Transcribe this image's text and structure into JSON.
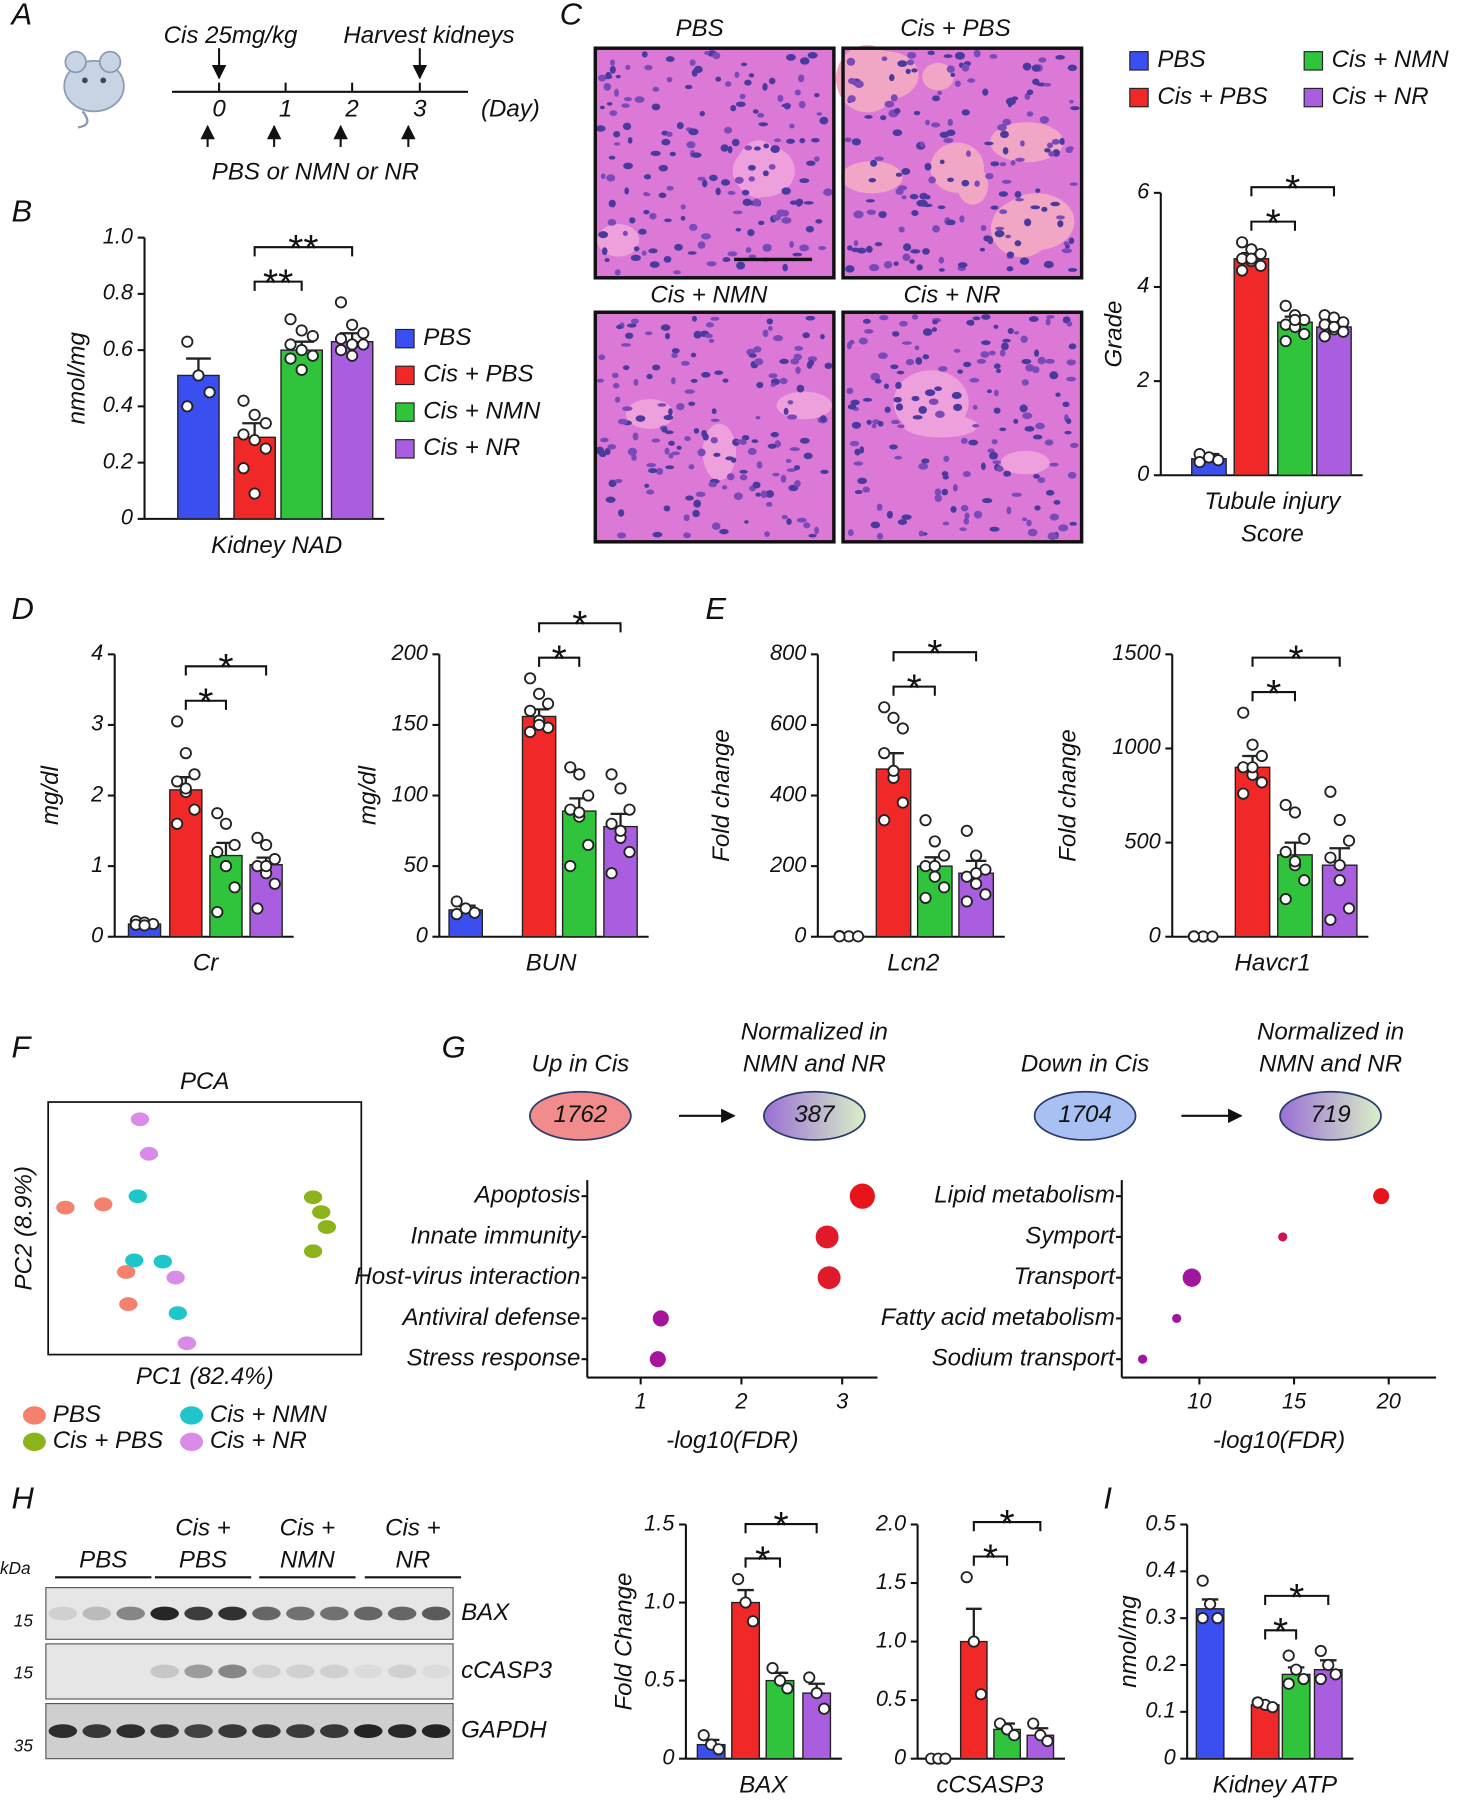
{
  "panels": [
    "A",
    "B",
    "C",
    "D",
    "E",
    "F",
    "G",
    "H",
    "I"
  ],
  "timeline": {
    "dose": "Cis 25mg/kg",
    "harvest": "Harvest kidneys",
    "days": [
      0,
      1,
      2,
      3
    ],
    "unit": "(Day)",
    "treatment": "PBS or NMN or NR"
  },
  "groups": [
    {
      "name": "PBS",
      "color": "#3b4ef0"
    },
    {
      "name": "Cis + PBS",
      "color": "#f02828"
    },
    {
      "name": "Cis + NMN",
      "color": "#2fc43c"
    },
    {
      "name": "Cis + NR",
      "color": "#a95ee0"
    }
  ],
  "histology": [
    "PBS",
    "Cis + PBS",
    "Cis + NMN",
    "Cis + NR"
  ],
  "venn": [
    {
      "label": [
        "Up in Cis"
      ],
      "count": 1762
    },
    {
      "label": [
        "Normalized in",
        "NMN and NR"
      ],
      "count": 387
    },
    {
      "label": [
        "Down in Cis"
      ],
      "count": 1704
    },
    {
      "label": [
        "Normalized in",
        "NMN and NR"
      ],
      "count": 719
    }
  ],
  "blot": {
    "kda": "kDa",
    "groups": [
      [
        "PBS"
      ],
      [
        "Cis +",
        "PBS"
      ],
      [
        "Cis +",
        "NMN"
      ],
      [
        "Cis +",
        "NR"
      ]
    ],
    "markers": [
      15,
      15,
      35
    ],
    "bands": [
      "BAX",
      "cCASP3",
      "GAPDH"
    ]
  },
  "chart_data": [
    {
      "type": "bar",
      "ylabel": "nmol/mg",
      "xlabel": [
        "Kidney NAD"
      ],
      "values": [
        0.51,
        0.29,
        0.6,
        0.63
      ],
      "errors": [
        0.06,
        0.05,
        0.03,
        0.03
      ],
      "points": [
        [
          0.63,
          0.51,
          0.45,
          0.4
        ],
        [
          0.42,
          0.37,
          0.34,
          0.3,
          0.28,
          0.25,
          0.18,
          0.09
        ],
        [
          0.71,
          0.67,
          0.65,
          0.62,
          0.6,
          0.58,
          0.57,
          0.53
        ],
        [
          0.77,
          0.69,
          0.66,
          0.64,
          0.62,
          0.62,
          0.6,
          0.58
        ]
      ],
      "ylim": [
        0,
        1
      ],
      "yticks": [
        0,
        0.2,
        0.4,
        0.6,
        0.8,
        {
          "value": 1,
          "label": "1.0"
        }
      ],
      "annotations": [
        "**",
        "**"
      ],
      "legend": "right"
    },
    {
      "type": "bar",
      "ylabel": "Grade",
      "xlabel": [
        "Tubule injury",
        "Score"
      ],
      "values": [
        0.35,
        4.6,
        3.25,
        3.15
      ],
      "errors": [
        0.1,
        0.12,
        0.12,
        0.08
      ],
      "points": [
        [
          0.45,
          0.38,
          0.32,
          0.28
        ],
        [
          4.95,
          4.8,
          4.7,
          4.6,
          4.55,
          4.45,
          4.35,
          4.6
        ],
        [
          3.6,
          3.4,
          3.3,
          3.2,
          3.15,
          3.0,
          2.85,
          3.3
        ],
        [
          3.4,
          3.35,
          3.25,
          3.2,
          3.1,
          3.05,
          2.95,
          3.15
        ]
      ],
      "ylim": [
        0,
        6
      ],
      "yticks": [
        0,
        2,
        4,
        6
      ],
      "annotations": [
        "*",
        "*"
      ],
      "legend": "top"
    },
    {
      "type": "bar",
      "ylabel": "mg/dl",
      "xlabel": [
        "Cr"
      ],
      "values": [
        0.18,
        2.08,
        1.15,
        1.02
      ],
      "errors": [
        0.03,
        0.18,
        0.18,
        0.1
      ],
      "points": [
        [
          0.22,
          0.2,
          0.18,
          0.17,
          0.16
        ],
        [
          3.05,
          2.6,
          2.3,
          2.2,
          2.05,
          1.8,
          1.6,
          2.1
        ],
        [
          1.75,
          1.6,
          1.3,
          1.2,
          1.0,
          0.7,
          0.35,
          1.0
        ],
        [
          1.4,
          1.3,
          1.1,
          1.0,
          0.9,
          0.75,
          0.4,
          1.0
        ]
      ],
      "ylim": [
        0,
        4
      ],
      "yticks": [
        0,
        1,
        2,
        3,
        4
      ],
      "annotations": [
        "*",
        "*"
      ]
    },
    {
      "type": "bar",
      "ylabel": "mg/dl",
      "xlabel": [
        "BUN"
      ],
      "values": [
        19,
        156,
        89,
        78
      ],
      "errors": [
        3,
        5,
        9,
        9
      ],
      "points": [
        [
          25,
          20,
          17,
          16
        ],
        [
          183,
          172,
          165,
          160,
          153,
          148,
          145,
          150
        ],
        [
          120,
          115,
          100,
          90,
          85,
          65,
          50,
          88
        ],
        [
          115,
          105,
          90,
          80,
          70,
          60,
          45,
          75
        ]
      ],
      "ylim": [
        0,
        200
      ],
      "yticks": [
        0,
        50,
        100,
        150,
        200
      ],
      "annotations": [
        "*",
        "*"
      ]
    },
    {
      "type": "bar",
      "ylabel": "Fold change",
      "xlabel": [
        "Lcn2"
      ],
      "values": [
        1,
        475,
        200,
        180
      ],
      "errors": [
        0.5,
        45,
        25,
        35
      ],
      "points": [
        [
          2,
          1,
          1,
          1
        ],
        [
          650,
          620,
          590,
          520,
          450,
          380,
          330,
          470
        ],
        [
          330,
          270,
          230,
          200,
          170,
          140,
          110,
          200
        ],
        [
          300,
          230,
          190,
          170,
          150,
          120,
          100,
          180
        ]
      ],
      "ylim": [
        0,
        800
      ],
      "yticks": [
        0,
        200,
        400,
        600,
        800
      ],
      "annotations": [
        "*",
        "*"
      ]
    },
    {
      "type": "bar",
      "ylabel": "Fold change",
      "xlabel": [
        "Havcr1"
      ],
      "values": [
        1,
        900,
        435,
        380
      ],
      "errors": [
        0.5,
        60,
        65,
        90
      ],
      "points": [
        [
          2,
          1,
          1,
          1
        ],
        [
          1190,
          1020,
          960,
          900,
          860,
          820,
          760,
          900
        ],
        [
          700,
          660,
          520,
          450,
          380,
          300,
          200,
          400
        ],
        [
          770,
          620,
          510,
          420,
          300,
          150,
          90,
          380
        ]
      ],
      "ylim": [
        0,
        1500
      ],
      "yticks": [
        0,
        500,
        1000,
        1500
      ],
      "annotations": [
        "*",
        "*"
      ]
    },
    {
      "type": "scatter",
      "title": "PCA",
      "xlabel": "PC1 (82.4%)",
      "ylabel": "PC2 (8.9%)",
      "xlim": [
        0,
        100
      ],
      "ylim": [
        0,
        100
      ],
      "series": [
        {
          "name": "PBS",
          "color": "#f4806e",
          "x": [
            5.5,
            17.6,
            24.9,
            25.6
          ],
          "y": [
            58.2,
            59.5,
            32.7,
            20.0
          ]
        },
        {
          "name": "Cis + PBS",
          "color": "#8db31a",
          "x": [
            84.6,
            87.2,
            89.0,
            84.6
          ],
          "y": [
            62.3,
            56.4,
            50.5,
            40.9
          ]
        },
        {
          "name": "Cis + NMN",
          "color": "#1ec6c9",
          "x": [
            28.6,
            27.5,
            36.6,
            41.4
          ],
          "y": [
            62.7,
            37.3,
            36.8,
            16.4
          ]
        },
        {
          "name": "Cis + NR",
          "color": "#da8ae9",
          "x": [
            29.3,
            32.2,
            40.7,
            44.3
          ],
          "y": [
            93.2,
            79.5,
            30.5,
            4.5
          ]
        }
      ]
    },
    {
      "type": "dot",
      "categories": [
        "Apoptosis",
        "Innate immunity",
        "Host-virus interaction",
        "Antiviral defense",
        "Stress response"
      ],
      "values": [
        3.2,
        2.85,
        2.87,
        1.2,
        1.17
      ],
      "sizes": [
        11,
        10,
        10,
        7,
        7
      ],
      "colors": [
        "#e8141c",
        "#e01a2a",
        "#e01a2a",
        "#a8139c",
        "#a8139c"
      ],
      "xlim": [
        0.47,
        3.35
      ],
      "xticks": [
        1,
        2,
        3
      ],
      "xlabel": "-log10(FDR)"
    },
    {
      "type": "dot",
      "categories": [
        "Lipid metabolism",
        "Symport",
        "Transport",
        "Fatty acid metabolism",
        "Sodium transport"
      ],
      "values": [
        19.6,
        14.4,
        9.6,
        8.8,
        7.0
      ],
      "sizes": [
        7,
        4,
        8,
        4,
        4
      ],
      "colors": [
        "#e8141c",
        "#d01250",
        "#a0169e",
        "#a0169e",
        "#a0169e"
      ],
      "xlim": [
        5.9,
        22.5
      ],
      "xticks": [
        10,
        15,
        20
      ],
      "xlabel": "-log10(FDR)"
    },
    {
      "type": "bar",
      "ylabel": "Fold Change",
      "xlabel": [
        "BAX"
      ],
      "values": [
        0.09,
        1.0,
        0.5,
        0.42
      ],
      "errors": [
        0.03,
        0.08,
        0.05,
        0.06
      ],
      "points": [
        [
          0.15,
          0.09,
          0.06
        ],
        [
          1.15,
          1.0,
          0.88
        ],
        [
          0.58,
          0.5,
          0.45
        ],
        [
          0.52,
          0.42,
          0.32
        ]
      ],
      "ylim": [
        0,
        1.5
      ],
      "yticks": [
        0,
        0.5,
        {
          "value": 1,
          "label": "1.0"
        },
        1.5
      ],
      "annotations": [
        "*",
        "*"
      ]
    },
    {
      "type": "bar",
      "xlabel": [
        "cCSASP3"
      ],
      "values": [
        0,
        1.0,
        0.25,
        0.2
      ],
      "errors": [
        0,
        0.28,
        0.05,
        0.06
      ],
      "points": [
        [
          0,
          0,
          0
        ],
        [
          1.55,
          1.0,
          0.55
        ],
        [
          0.3,
          0.25,
          0.2
        ],
        [
          0.3,
          0.2,
          0.15
        ]
      ],
      "ylim": [
        0,
        2
      ],
      "yticks": [
        0,
        0.5,
        {
          "value": 1,
          "label": "1.0"
        },
        1.5,
        {
          "value": 2,
          "label": "2.0"
        }
      ],
      "annotations": [
        "*",
        "*"
      ]
    },
    {
      "type": "bar",
      "ylabel": "nmol/mg",
      "xlabel": [
        "Kidney ATP"
      ],
      "values": [
        0.32,
        0.115,
        0.18,
        0.19
      ],
      "errors": [
        0.02,
        0.005,
        0.015,
        0.02
      ],
      "points": [
        [
          0.38,
          0.33,
          0.3,
          0.3
        ],
        [
          0.12,
          0.115,
          0.11,
          0.12
        ],
        [
          0.22,
          0.19,
          0.17,
          0.16
        ],
        [
          0.23,
          0.2,
          0.18,
          0.17
        ]
      ],
      "ylim": [
        0,
        0.5
      ],
      "yticks": [
        0,
        0.1,
        0.2,
        0.3,
        0.4,
        0.5
      ],
      "annotations": [
        "*",
        "*"
      ]
    }
  ]
}
